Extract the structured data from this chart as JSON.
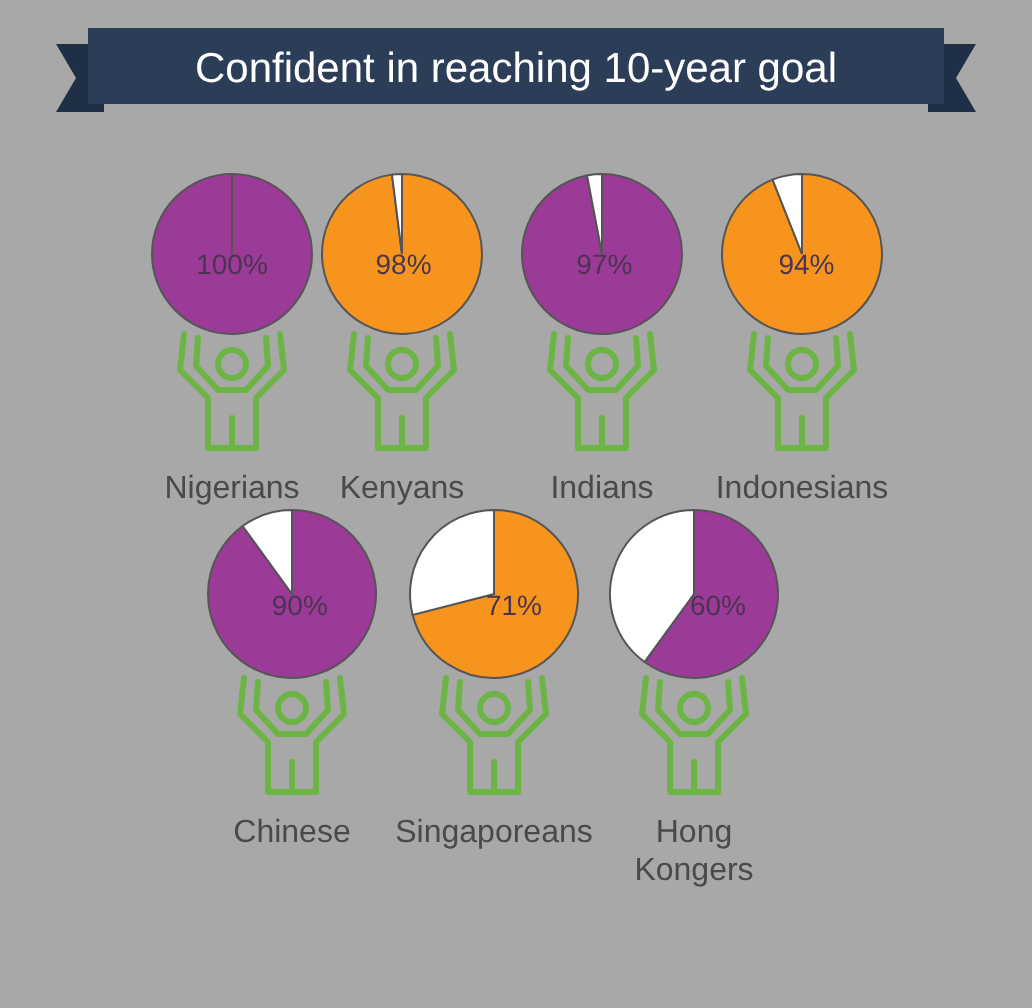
{
  "chart_data": [
    {
      "type": "pie",
      "title": "Confident in reaching 10-year goal",
      "xlabel": "Nigerians",
      "values": [
        100,
        0
      ],
      "colors": [
        "#9b3b97",
        "#ffffff"
      ],
      "value_labels": [
        "100%",
        null
      ]
    },
    {
      "type": "pie",
      "xlabel": "Kenyans",
      "values": [
        98,
        2
      ],
      "colors": [
        "#f7941e",
        "#ffffff"
      ],
      "value_labels": [
        "98%",
        null
      ]
    },
    {
      "type": "pie",
      "xlabel": "Indians",
      "values": [
        97,
        3
      ],
      "colors": [
        "#9b3b97",
        "#ffffff"
      ],
      "value_labels": [
        "97%",
        null
      ]
    },
    {
      "type": "pie",
      "xlabel": "Indonesians",
      "values": [
        94,
        6
      ],
      "colors": [
        "#f7941e",
        "#ffffff"
      ],
      "value_labels": [
        "94%",
        null
      ]
    },
    {
      "type": "pie",
      "xlabel": "Chinese",
      "values": [
        90,
        10
      ],
      "colors": [
        "#9b3b97",
        "#ffffff"
      ],
      "value_labels": [
        "90%",
        null
      ]
    },
    {
      "type": "pie",
      "xlabel": "Singaporeans",
      "values": [
        71,
        29
      ],
      "colors": [
        "#f7941e",
        "#ffffff"
      ],
      "value_labels": [
        "71%",
        null
      ]
    },
    {
      "type": "pie",
      "xlabel": "Hong Kongers",
      "values": [
        60,
        40
      ],
      "colors": [
        "#9b3b97",
        "#ffffff"
      ],
      "value_labels": [
        "60%",
        null
      ]
    }
  ]
}
